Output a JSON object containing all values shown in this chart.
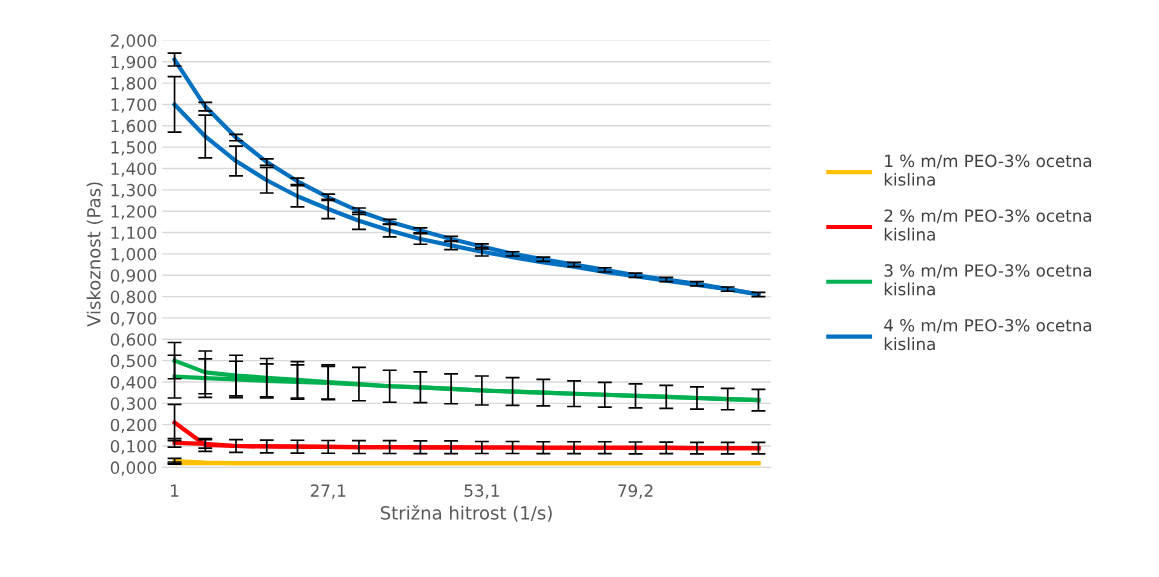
{
  "chart_data": {
    "type": "line",
    "xlabel": "Strižna hitrost (1/s)",
    "ylabel": "Viskoznost (Pas)",
    "categories": [
      "1",
      null,
      null,
      null,
      null,
      "27,1",
      null,
      null,
      null,
      null,
      "53,1",
      null,
      null,
      null,
      null,
      "79,2",
      null,
      null,
      null,
      null
    ],
    "ylim": [
      0,
      2
    ],
    "yticks": [
      {
        "value": 0,
        "label": "0,000"
      },
      {
        "value": 0.1,
        "label": "0,100"
      },
      {
        "value": 0.2,
        "label": "0,200"
      },
      {
        "value": 0.3,
        "label": "0,300"
      },
      {
        "value": 0.4,
        "label": "0,400"
      },
      {
        "value": 0.5,
        "label": "0,500"
      },
      {
        "value": 0.6,
        "label": "0,600"
      },
      {
        "value": 0.7,
        "label": "0,700"
      },
      {
        "value": 0.8,
        "label": "0,800"
      },
      {
        "value": 0.9,
        "label": "0,900"
      },
      {
        "value": 1.0,
        "label": "1,000"
      },
      {
        "value": 1.1,
        "label": "1,100"
      },
      {
        "value": 1.2,
        "label": "1,200"
      },
      {
        "value": 1.3,
        "label": "1,300"
      },
      {
        "value": 1.4,
        "label": "1,400"
      },
      {
        "value": 1.5,
        "label": "1,500"
      },
      {
        "value": 1.6,
        "label": "1,600"
      },
      {
        "value": 1.7,
        "label": "1,700"
      },
      {
        "value": 1.8,
        "label": "1,800"
      },
      {
        "value": 1.9,
        "label": "1,900"
      },
      {
        "value": 2.0,
        "label": "2,000"
      }
    ],
    "grid": "y",
    "legend": "right",
    "marker": "none",
    "line_style": "solid",
    "series": [
      {
        "name": "1 % m/m PEO-3% ocetna kislina",
        "color": "#ffc000",
        "values": [
          0.03,
          0.022,
          0.02,
          0.02,
          0.02,
          0.02,
          0.02,
          0.02,
          0.02,
          0.02,
          0.02,
          0.02,
          0.02,
          0.02,
          0.02,
          0.02,
          0.02,
          0.02,
          0.02,
          0.02
        ],
        "errors": [
          0.012,
          null,
          null,
          null,
          null,
          null,
          null,
          null,
          null,
          null,
          null,
          null,
          null,
          null,
          null,
          null,
          null,
          null,
          null,
          null
        ]
      },
      {
        "color": "#ffc000",
        "values": [
          0.02,
          0.02,
          0.02,
          0.02,
          0.02,
          0.02,
          0.02,
          0.02,
          0.02,
          0.02,
          0.02,
          0.02,
          0.02,
          0.02,
          0.02,
          0.02,
          0.02,
          0.02,
          0.02,
          0.02
        ],
        "errors": [
          0.005,
          null,
          null,
          null,
          null,
          null,
          null,
          null,
          null,
          null,
          null,
          null,
          null,
          null,
          null,
          null,
          null,
          null,
          null,
          null
        ]
      },
      {
        "name": "2 % m/m PEO-3% ocetna kislina",
        "color": "#ff0000",
        "values": [
          0.21,
          0.105,
          0.1,
          0.098,
          0.097,
          0.096,
          0.095,
          0.095,
          0.094,
          0.094,
          0.093,
          0.093,
          0.092,
          0.092,
          0.092,
          0.091,
          0.091,
          0.09,
          0.09,
          0.09
        ],
        "errors": [
          0.085,
          0.03,
          0.03,
          0.03,
          0.03,
          0.03,
          0.03,
          0.03,
          0.03,
          0.03,
          0.028,
          0.028,
          0.028,
          0.028,
          0.028,
          0.028,
          0.027,
          0.027,
          0.027,
          0.027
        ]
      },
      {
        "color": "#ff0000",
        "values": [
          0.115,
          0.11,
          0.1,
          0.098,
          0.097,
          0.096,
          0.095,
          0.095,
          0.094,
          0.094,
          0.093,
          0.093,
          0.092,
          0.092,
          0.092,
          0.091,
          0.091,
          0.09,
          0.09,
          0.09
        ],
        "errors": [
          0.02,
          0.02,
          null,
          null,
          null,
          null,
          null,
          null,
          null,
          null,
          null,
          null,
          null,
          null,
          null,
          null,
          null,
          null,
          null,
          null
        ]
      },
      {
        "name": "3 % m/m PEO-3% ocetna kislina",
        "color": "#00b050",
        "values": [
          0.5,
          0.445,
          0.43,
          0.42,
          0.41,
          0.4,
          0.39,
          0.38,
          0.375,
          0.368,
          0.36,
          0.355,
          0.35,
          0.345,
          0.34,
          0.335,
          0.33,
          0.325,
          0.32,
          0.315
        ],
        "errors": [
          0.085,
          0.1,
          0.095,
          0.09,
          0.085,
          0.08,
          0.078,
          0.075,
          0.072,
          0.07,
          0.068,
          0.065,
          0.062,
          0.06,
          0.058,
          0.056,
          0.054,
          0.052,
          0.05,
          0.05
        ]
      },
      {
        "color": "#00b050",
        "values": [
          0.425,
          0.418,
          0.412,
          0.405,
          0.4,
          0.395,
          0.388,
          0.38,
          0.375,
          0.368,
          0.36,
          0.355,
          0.35,
          0.345,
          0.34,
          0.335,
          0.33,
          0.325,
          0.32,
          0.315
        ],
        "errors": [
          0.1,
          0.09,
          0.085,
          0.08,
          0.08,
          0.078,
          null,
          null,
          null,
          null,
          null,
          null,
          null,
          null,
          null,
          null,
          null,
          null,
          null,
          null
        ]
      },
      {
        "name": "4 % m/m PEO-3% ocetna kislina",
        "color": "#0070c0",
        "values": [
          1.91,
          1.69,
          1.545,
          1.43,
          1.34,
          1.265,
          1.2,
          1.15,
          1.11,
          1.07,
          1.035,
          1.0,
          0.975,
          0.95,
          0.925,
          0.9,
          0.88,
          0.86,
          0.835,
          0.81
        ],
        "errors": [
          0.03,
          0.02,
          0.015,
          0.015,
          0.015,
          0.015,
          0.015,
          0.012,
          0.012,
          0.012,
          0.012,
          0.01,
          0.01,
          0.01,
          0.01,
          0.01,
          0.01,
          0.01,
          0.01,
          0.01
        ]
      },
      {
        "color": "#0070c0",
        "values": [
          1.7,
          1.55,
          1.435,
          1.345,
          1.27,
          1.21,
          1.155,
          1.11,
          1.07,
          1.04,
          1.01,
          0.985,
          0.96,
          0.94,
          0.915,
          0.895,
          0.875,
          0.855,
          0.835,
          0.81
        ],
        "errors": [
          0.13,
          0.1,
          0.07,
          0.06,
          0.05,
          0.045,
          0.04,
          0.03,
          0.025,
          0.02,
          0.02,
          null,
          null,
          null,
          null,
          null,
          null,
          null,
          null,
          null
        ]
      }
    ]
  }
}
